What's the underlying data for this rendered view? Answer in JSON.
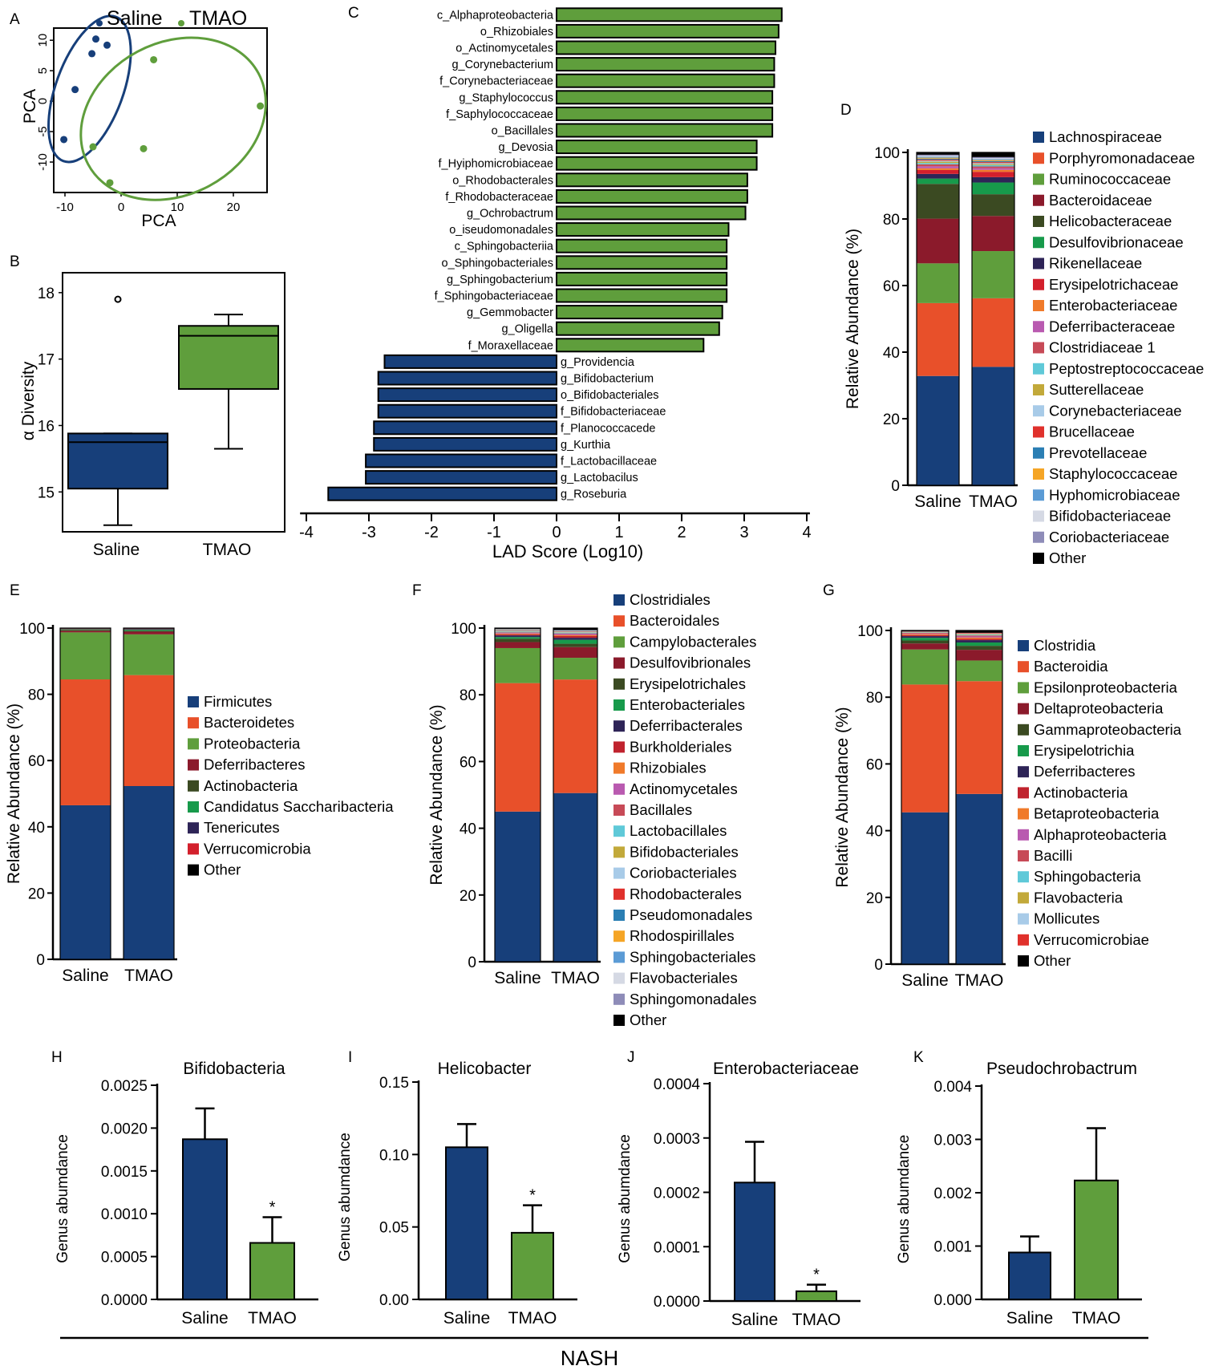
{
  "colors": {
    "saline": "#173f7a",
    "tmao": "#5f9e3c",
    "axis": "#000000"
  },
  "footer": {
    "label": "NASH"
  },
  "chart_data": [
    {
      "id": "A",
      "panel_label": "A",
      "type": "scatter",
      "xlabel": "PCA",
      "ylabel": "PCA",
      "xlim": [
        -12,
        26
      ],
      "ylim": [
        -15,
        12
      ],
      "xticks": [
        "-10",
        "0",
        "10",
        "20"
      ],
      "xtick_values": [
        -10,
        0,
        10,
        20
      ],
      "yticks": [
        "10",
        "5",
        "0",
        "-5",
        "-10"
      ],
      "ytick_values": [
        10,
        5,
        0,
        -5,
        -10
      ],
      "legend": [
        "Saline",
        "TMAO"
      ],
      "series": [
        {
          "name": "Saline",
          "points": [
            [
              -10.2,
              -6.3
            ],
            [
              -8.2,
              1.9
            ],
            [
              -5.2,
              7.8
            ],
            [
              -4.5,
              10.2
            ],
            [
              -2.5,
              9.2
            ]
          ],
          "ellipse": {
            "cx": -5.6,
            "cy": 2.0,
            "rx": 6.0,
            "ry": 12.6,
            "angle_deg": 20
          }
        },
        {
          "name": "TMAO",
          "points": [
            [
              -5.0,
              -7.5
            ],
            [
              -2.0,
              -13.4
            ],
            [
              4.0,
              -7.8
            ],
            [
              5.8,
              6.8
            ],
            [
              24.8,
              -0.8
            ]
          ],
          "ellipse": {
            "cx": 9.3,
            "cy": -2.9,
            "rx": 17.2,
            "ry": 12.5,
            "angle_deg": -28
          }
        }
      ]
    },
    {
      "id": "B",
      "panel_label": "B",
      "type": "box",
      "ylabel": "α Diversity",
      "ylim": [
        14.4,
        18.3
      ],
      "yticks": [
        "18",
        "17",
        "16",
        "15"
      ],
      "ytick_values": [
        18,
        17,
        16,
        15
      ],
      "categories": [
        "Saline",
        "TMAO"
      ],
      "boxes": [
        {
          "name": "Saline",
          "min": 14.5,
          "q1": 15.05,
          "median": 15.75,
          "q3": 15.88,
          "max": 15.88,
          "outliers": [
            17.9
          ]
        },
        {
          "name": "TMAO",
          "min": 15.65,
          "q1": 16.55,
          "median": 17.35,
          "q3": 17.5,
          "max": 17.67,
          "outliers": []
        }
      ]
    },
    {
      "id": "C",
      "panel_label": "C",
      "type": "bar",
      "orientation": "horizontal",
      "xlabel": "LAD Score (Log10)",
      "xlim": [
        -4.2,
        4.2
      ],
      "xticks": [
        "-4",
        "-3",
        "-2",
        "-1",
        "0",
        "1",
        "2",
        "3",
        "4"
      ],
      "xtick_values": [
        -4,
        -3,
        -2,
        -1,
        0,
        1,
        2,
        3,
        4
      ],
      "categories": [
        "c_Alphaproteobacteria",
        "o_Rhizobiales",
        "o_Actinomycetales",
        "g_Corynebacterium",
        "f_Corynebacteriaceae",
        "g_Staphylococcus",
        "f_Saphylococcaceae",
        "o_Bacillales",
        "g_Devosia",
        "f_Hyiphomicrobiaceae",
        "o_Rhodobacterales",
        "f_Rhodobacteraceae",
        "g_Ochrobactrum",
        "o_iseudomonadales",
        "c_Sphingobacteriia",
        "o_Sphingobacteriales",
        "g_Sphingobacterium",
        "f_Sphingobacteriaceae",
        "g_Gemmobacter",
        "g_Oligella",
        "f_Moraxellaceae",
        "g_Providencia",
        "g_Bifidobacterium",
        "o_Bifidobacteriales",
        "f_Bifidobacteriaceae",
        "f_Planococcacede",
        "g_Kurthia",
        "f_Lactobacillaceae",
        "g_Lactobacilus",
        "g_Roseburia"
      ],
      "values": [
        3.6,
        3.55,
        3.5,
        3.48,
        3.48,
        3.45,
        3.45,
        3.45,
        3.2,
        3.2,
        3.05,
        3.05,
        3.02,
        2.75,
        2.72,
        2.72,
        2.72,
        2.72,
        2.65,
        2.6,
        2.35,
        -2.75,
        -2.85,
        -2.85,
        -2.85,
        -2.92,
        -2.92,
        -3.05,
        -3.05,
        -3.65
      ]
    },
    {
      "id": "D",
      "panel_label": "D",
      "type": "stacked_bar",
      "ylabel": "Relative Abundance (%)",
      "ylim": [
        0,
        100
      ],
      "yticks": [
        "100",
        "80",
        "60",
        "40",
        "20",
        "0"
      ],
      "ytick_values": [
        100,
        80,
        60,
        40,
        20,
        0
      ],
      "categories": [
        "Saline",
        "TMAO"
      ],
      "series": [
        {
          "name": "Lachnospiraceae",
          "color": "#173f7a",
          "values": [
            33,
            35.4
          ]
        },
        {
          "name": "Porphyromonadaceae",
          "color": "#e8502a",
          "values": [
            22,
            20.5
          ]
        },
        {
          "name": "Ruminococcaceae",
          "color": "#5f9e3c",
          "values": [
            12,
            14.1
          ]
        },
        {
          "name": "Bacteroidaceae",
          "color": "#8b1a2b",
          "values": [
            13.5,
            10.5
          ]
        },
        {
          "name": "Helicobacteraceae",
          "color": "#3b4a22",
          "values": [
            10.5,
            6.5
          ]
        },
        {
          "name": "Desulfovibrionaceae",
          "color": "#179a4b",
          "values": [
            1.6,
            3.5
          ]
        },
        {
          "name": "Rikenellaceae",
          "color": "#2e2457",
          "values": [
            1.4,
            1.6
          ]
        },
        {
          "name": "Erysipelotrichaceae",
          "color": "#d3202c",
          "values": [
            1.2,
            1.6
          ]
        },
        {
          "name": "Enterobacteriaceae",
          "color": "#f07a2a",
          "values": [
            0.5,
            0.6
          ]
        },
        {
          "name": "Deferribacteraceae",
          "color": "#b95ab0",
          "values": [
            0.6,
            0.5
          ]
        },
        {
          "name": "Clostridiaceae 1",
          "color": "#c74a57",
          "values": [
            0.6,
            0.5
          ]
        },
        {
          "name": "Peptostreptococcaceae",
          "color": "#5fc9d8",
          "values": [
            0.4,
            0.4
          ]
        },
        {
          "name": "Sutterellaceae",
          "color": "#c2a93a",
          "values": [
            0.4,
            0.3
          ]
        },
        {
          "name": "Corynebacteriaceae",
          "color": "#a8cbe8",
          "values": [
            0.3,
            0.3
          ]
        },
        {
          "name": "Brucellaceae",
          "color": "#e0312c",
          "values": [
            0.3,
            0.3
          ]
        },
        {
          "name": "Prevotellaceae",
          "color": "#2b7fb4",
          "values": [
            0.3,
            0.3
          ]
        },
        {
          "name": "Staphylococcaceae",
          "color": "#f5a526",
          "values": [
            0.3,
            0.3
          ]
        },
        {
          "name": "Hyphomicrobiaceae",
          "color": "#5b9bd5",
          "values": [
            0.3,
            0.3
          ]
        },
        {
          "name": "Bifidobacteriaceae",
          "color": "#d5d9e4",
          "values": [
            0.3,
            0.3
          ]
        },
        {
          "name": "Coriobacteriaceae",
          "color": "#8e8cb8",
          "values": [
            0.3,
            0.3
          ]
        },
        {
          "name": "Other",
          "color": "#000000",
          "values": [
            0.7,
            1.4
          ]
        }
      ]
    },
    {
      "id": "E",
      "panel_label": "E",
      "type": "stacked_bar",
      "ylabel": "Relative Abundance (%)",
      "ylim": [
        0,
        100
      ],
      "yticks": [
        "100",
        "80",
        "60",
        "40",
        "20",
        "0"
      ],
      "ytick_values": [
        100,
        80,
        60,
        40,
        20,
        0
      ],
      "categories": [
        "Saline",
        "TMAO"
      ],
      "series": [
        {
          "name": "Firmicutes",
          "color": "#173f7a",
          "values": [
            46.5,
            52.3
          ]
        },
        {
          "name": "Bacteroidetes",
          "color": "#e8502a",
          "values": [
            38,
            33.5
          ]
        },
        {
          "name": "Proteobacteria",
          "color": "#5f9e3c",
          "values": [
            14.2,
            12.3
          ]
        },
        {
          "name": "Deferribacteres",
          "color": "#8b1a2b",
          "values": [
            0.5,
            0.8
          ]
        },
        {
          "name": "Actinobacteria",
          "color": "#3b4a22",
          "values": [
            0.2,
            0.3
          ]
        },
        {
          "name": "Candidatus Saccharibacteria",
          "color": "#179a4b",
          "values": [
            0.2,
            0.3
          ]
        },
        {
          "name": "Tenericutes",
          "color": "#2e2457",
          "values": [
            0.1,
            0.2
          ]
        },
        {
          "name": "Verrucomicrobia",
          "color": "#d3202c",
          "values": [
            0.1,
            0.1
          ]
        },
        {
          "name": "Other",
          "color": "#000000",
          "values": [
            0.2,
            0.2
          ]
        }
      ]
    },
    {
      "id": "F",
      "panel_label": "F",
      "type": "stacked_bar",
      "ylabel": "Relative Abundance (%)",
      "ylim": [
        0,
        100
      ],
      "yticks": [
        "100",
        "80",
        "60",
        "40",
        "20",
        "0"
      ],
      "ytick_values": [
        100,
        80,
        60,
        40,
        20,
        0
      ],
      "categories": [
        "Saline",
        "TMAO"
      ],
      "series": [
        {
          "name": "Clostridiales",
          "color": "#173f7a",
          "values": [
            45,
            50.5
          ]
        },
        {
          "name": "Bacteroidales",
          "color": "#e8502a",
          "values": [
            38.5,
            34
          ]
        },
        {
          "name": "Campylobacterales",
          "color": "#5f9e3c",
          "values": [
            10.5,
            6.5
          ]
        },
        {
          "name": "Desulfovibrionales",
          "color": "#8b1a2b",
          "values": [
            1.8,
            3.2
          ]
        },
        {
          "name": "Erysipelotrichales",
          "color": "#3b4a22",
          "values": [
            1.0,
            1.0
          ]
        },
        {
          "name": "Enterobacteriales",
          "color": "#179a4b",
          "values": [
            0.5,
            1.2
          ]
        },
        {
          "name": "Deferribacterales",
          "color": "#2e2457",
          "values": [
            0.5,
            0.6
          ]
        },
        {
          "name": "Burkholderiales",
          "color": "#c0232e",
          "values": [
            0.3,
            0.5
          ]
        },
        {
          "name": "Rhizobiales",
          "color": "#f07a2a",
          "values": [
            0.2,
            0.3
          ]
        },
        {
          "name": "Actinomycetales",
          "color": "#b95ab0",
          "values": [
            0.2,
            0.3
          ]
        },
        {
          "name": "Bacillales",
          "color": "#c74a57",
          "values": [
            0.2,
            0.2
          ]
        },
        {
          "name": "Lactobacillales",
          "color": "#5fc9d8",
          "values": [
            0.2,
            0.2
          ]
        },
        {
          "name": "Bifidobacteriales",
          "color": "#c2a93a",
          "values": [
            0.1,
            0.1
          ]
        },
        {
          "name": "Coriobacteriales",
          "color": "#a8cbe8",
          "values": [
            0.1,
            0.1
          ]
        },
        {
          "name": "Rhodobacterales",
          "color": "#e0312c",
          "values": [
            0.1,
            0.1
          ]
        },
        {
          "name": "Pseudomonadales",
          "color": "#2b7fb4",
          "values": [
            0.1,
            0.1
          ]
        },
        {
          "name": "Rhodospirillales",
          "color": "#f5a526",
          "values": [
            0.1,
            0.1
          ]
        },
        {
          "name": "Sphingobacteriales",
          "color": "#5b9bd5",
          "values": [
            0.1,
            0.1
          ]
        },
        {
          "name": "Flavobacteriales",
          "color": "#d5d9e4",
          "values": [
            0.1,
            0.1
          ]
        },
        {
          "name": "Sphingomonadales",
          "color": "#8e8cb8",
          "values": [
            0.1,
            0.1
          ]
        },
        {
          "name": "Other",
          "color": "#000000",
          "values": [
            0.3,
            0.6
          ]
        }
      ]
    },
    {
      "id": "G",
      "panel_label": "G",
      "type": "stacked_bar",
      "ylabel": "Relative Abundance (%)",
      "ylim": [
        0,
        100
      ],
      "yticks": [
        "100",
        "80",
        "60",
        "40",
        "20",
        "0"
      ],
      "ytick_values": [
        100,
        80,
        60,
        40,
        20,
        0
      ],
      "categories": [
        "Saline",
        "TMAO"
      ],
      "series": [
        {
          "name": "Clostridia",
          "color": "#173f7a",
          "values": [
            45.5,
            51
          ]
        },
        {
          "name": "Bacteroidia",
          "color": "#e8502a",
          "values": [
            38.3,
            33.8
          ]
        },
        {
          "name": "Epsilonproteobacteria",
          "color": "#5f9e3c",
          "values": [
            10.5,
            6.2
          ]
        },
        {
          "name": "Deltaproteobacteria",
          "color": "#8b1a2b",
          "values": [
            1.8,
            3.2
          ]
        },
        {
          "name": "Gammaproteobacteria",
          "color": "#3b4a22",
          "values": [
            0.9,
            1.2
          ]
        },
        {
          "name": "Erysipelotrichia",
          "color": "#179a4b",
          "values": [
            0.8,
            1.0
          ]
        },
        {
          "name": "Deferribacteres",
          "color": "#2e2457",
          "values": [
            0.5,
            0.7
          ]
        },
        {
          "name": "Actinobacteria",
          "color": "#c0232e",
          "values": [
            0.3,
            0.4
          ]
        },
        {
          "name": "Betaproteobacteria",
          "color": "#f07a2a",
          "values": [
            0.3,
            0.4
          ]
        },
        {
          "name": "Alphaproteobacteria",
          "color": "#b95ab0",
          "values": [
            0.2,
            0.3
          ]
        },
        {
          "name": "Bacilli",
          "color": "#c74a57",
          "values": [
            0.2,
            0.3
          ]
        },
        {
          "name": "Sphingobacteria",
          "color": "#5fc9d8",
          "values": [
            0.1,
            0.2
          ]
        },
        {
          "name": "Flavobacteria",
          "color": "#c2a93a",
          "values": [
            0.1,
            0.2
          ]
        },
        {
          "name": "Mollicutes",
          "color": "#a8cbe8",
          "values": [
            0.1,
            0.2
          ]
        },
        {
          "name": "Verrucomicrobiae",
          "color": "#e0312c",
          "values": [
            0.1,
            0.2
          ]
        },
        {
          "name": "Other",
          "color": "#000000",
          "values": [
            0.3,
            0.7
          ]
        }
      ]
    },
    {
      "id": "H",
      "panel_label": "H",
      "type": "bar",
      "title": "Bifidobacteria",
      "ylabel": "Genus abumdance",
      "ylim": [
        0,
        0.0025
      ],
      "yticks": [
        "0.0025",
        "0.0020",
        "0.0015",
        "0.0010",
        "0.0005",
        "0.0000"
      ],
      "ytick_values": [
        0.0025,
        0.002,
        0.0015,
        0.001,
        0.0005,
        0
      ],
      "categories": [
        "Saline",
        "TMAO"
      ],
      "values": [
        0.00187,
        0.00066
      ],
      "errors": [
        0.00036,
        0.0003
      ],
      "significance": [
        "",
        "*"
      ]
    },
    {
      "id": "I",
      "panel_label": "I",
      "type": "bar",
      "title": "Helicobacter",
      "ylabel": "Genus abumdance",
      "ylim": [
        0,
        0.15
      ],
      "yticks": [
        "0.15",
        "0.10",
        "0.05",
        "0.00"
      ],
      "ytick_values": [
        0.15,
        0.1,
        0.05,
        0
      ],
      "categories": [
        "Saline",
        "TMAO"
      ],
      "values": [
        0.105,
        0.046
      ],
      "errors": [
        0.016,
        0.019
      ],
      "significance": [
        "",
        "*"
      ]
    },
    {
      "id": "J",
      "panel_label": "J",
      "type": "bar",
      "title": "Enterobacteriaceae",
      "ylabel": "Genus abumdance",
      "ylim": [
        0,
        0.0004
      ],
      "yticks": [
        "0.0004",
        "0.0003",
        "0.0002",
        "0.0001",
        "0.0000"
      ],
      "ytick_values": [
        0.0004,
        0.0003,
        0.0002,
        0.0001,
        0
      ],
      "categories": [
        "Saline",
        "TMAO"
      ],
      "values": [
        0.000218,
        1.8e-05
      ],
      "errors": [
        7.5e-05,
        1.2e-05
      ],
      "significance": [
        "",
        "*"
      ]
    },
    {
      "id": "K",
      "panel_label": "K",
      "type": "bar",
      "title": "Pseudochrobactrum",
      "ylabel": "Genus abumdance",
      "ylim": [
        0,
        0.004
      ],
      "yticks": [
        "0.004",
        "0.003",
        "0.002",
        "0.001",
        "0.000"
      ],
      "ytick_values": [
        0.004,
        0.003,
        0.002,
        0.001,
        0
      ],
      "categories": [
        "Saline",
        "TMAO"
      ],
      "values": [
        0.00088,
        0.00223
      ],
      "errors": [
        0.0003,
        0.00098
      ],
      "significance": [
        "",
        ""
      ]
    }
  ]
}
